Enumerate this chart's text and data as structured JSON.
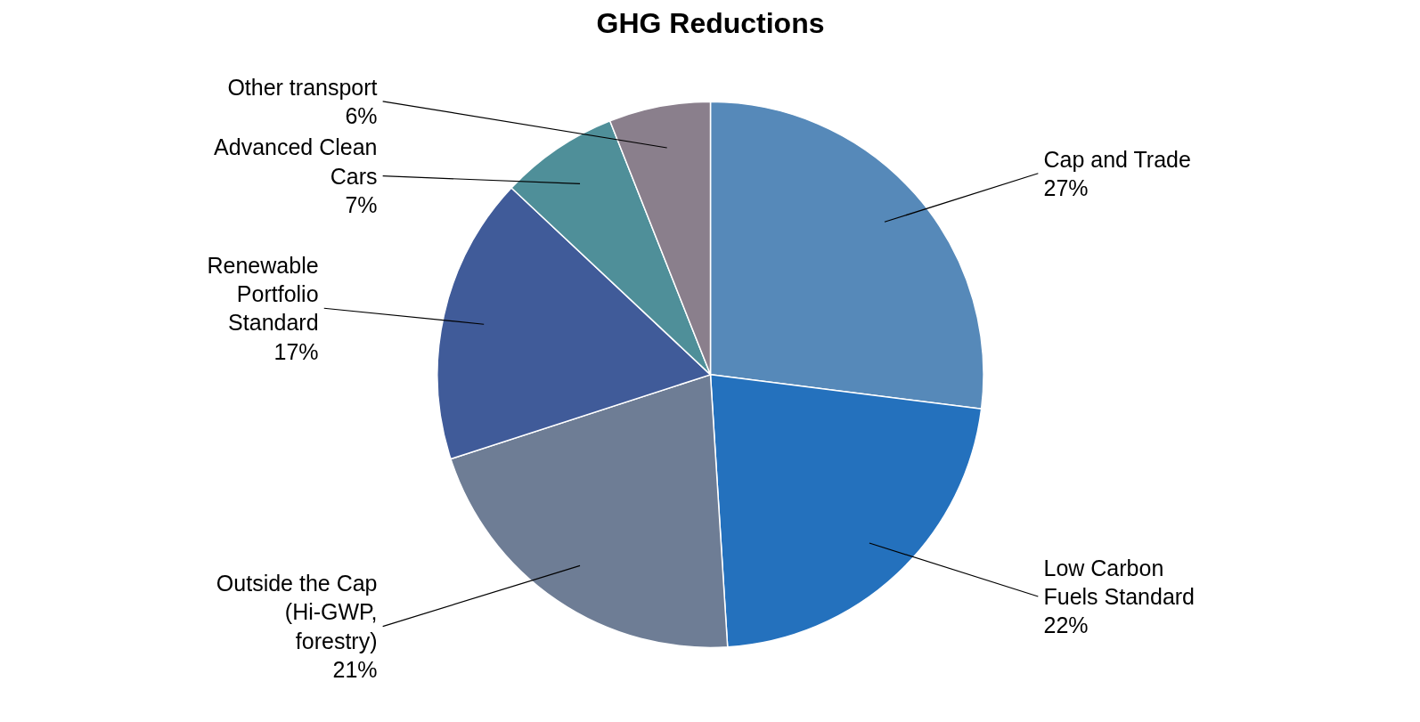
{
  "chart_data": {
    "type": "pie",
    "title": "GHG Reductions",
    "categories": [
      "Cap and Trade",
      "Low Carbon Fuels Standard",
      "Outside the Cap (Hi-GWP, forestry)",
      "Renewable Portfolio Standard",
      "Advanced Clean Cars",
      "Other transport"
    ],
    "values": [
      27,
      22,
      21,
      17,
      7,
      6
    ],
    "colors": [
      "#5689b9",
      "#2471bd",
      "#6e7d95",
      "#405b99",
      "#4f8f99",
      "#8a7f8c"
    ],
    "value_labels": [
      "27%",
      "22%",
      "21%",
      "17%",
      "7%",
      "6%"
    ],
    "legend": false
  }
}
